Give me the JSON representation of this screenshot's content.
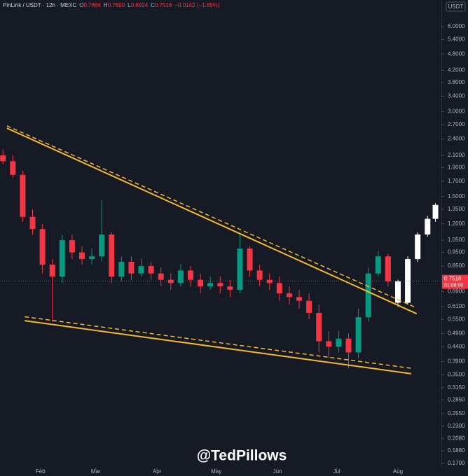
{
  "header": {
    "symbol": "PinLink / USDT · 12h · MEXC",
    "o_label": "O",
    "o": "0.7664",
    "h_label": "H",
    "h": "0.7800",
    "l_label": "L",
    "l": "0.6924",
    "c_label": "C",
    "c": "0.7516",
    "change": "−0.0142 (−1.85%)"
  },
  "currency": "USDT",
  "watermark": "@TedPillows",
  "countdown": "01:08:00",
  "chart_data": {
    "type": "candlestick",
    "log_scale": true,
    "xlim": [
      10.5,
      234
    ],
    "ylim": [
      0.164,
      7.46
    ],
    "xticks": [
      {
        "value": 31,
        "label": "Feb"
      },
      {
        "value": 59,
        "label": "Mar"
      },
      {
        "value": 90,
        "label": "Apr"
      },
      {
        "value": 120,
        "label": "May"
      },
      {
        "value": 151,
        "label": "Jun"
      },
      {
        "value": 181,
        "label": "Jul"
      },
      {
        "value": 212,
        "label": "Aug"
      }
    ],
    "yticks": [
      {
        "value": 6,
        "label": "6.0000"
      },
      {
        "value": 5.4,
        "label": "5.4000"
      },
      {
        "value": 4.8,
        "label": "4.8000"
      },
      {
        "value": 4.2,
        "label": "4.2000"
      },
      {
        "value": 3.8,
        "label": "3.8000"
      },
      {
        "value": 3.4,
        "label": "3.4000"
      },
      {
        "value": 3,
        "label": "3.0000"
      },
      {
        "value": 2.7,
        "label": "2.7000"
      },
      {
        "value": 2.4,
        "label": "2.4000"
      },
      {
        "value": 2.1,
        "label": "2.1000"
      },
      {
        "value": 1.9,
        "label": "1.9000"
      },
      {
        "value": 1.7,
        "label": "1.7000"
      },
      {
        "value": 1.5,
        "label": "1.5000"
      },
      {
        "value": 1.35,
        "label": "1.3500"
      },
      {
        "value": 1.2,
        "label": "1.2000"
      },
      {
        "value": 1.05,
        "label": "1.0500"
      },
      {
        "value": 0.95,
        "label": "0.9500"
      },
      {
        "value": 0.85,
        "label": "0.8500"
      },
      {
        "value": 0.69,
        "label": "0.6900"
      },
      {
        "value": 0.61,
        "label": "0.6100"
      },
      {
        "value": 0.55,
        "label": "0.5500"
      },
      {
        "value": 0.49,
        "label": "0.4900"
      },
      {
        "value": 0.44,
        "label": "0.4400"
      },
      {
        "value": 0.39,
        "label": "0.3900"
      },
      {
        "value": 0.35,
        "label": "0.3500"
      },
      {
        "value": 0.315,
        "label": "0.3150"
      },
      {
        "value": 0.285,
        "label": "0.2850"
      },
      {
        "value": 0.255,
        "label": "0.2550"
      },
      {
        "value": 0.23,
        "label": "0.2300"
      },
      {
        "value": 0.208,
        "label": "0.2080"
      },
      {
        "value": 0.188,
        "label": "0.1880"
      },
      {
        "value": 0.17,
        "label": "0.1700"
      }
    ],
    "up_color": "#089981",
    "down_color": "#f23645",
    "last_price": 0.7516,
    "series": [
      {
        "x": [
          12,
          17,
          22,
          27,
          32,
          37,
          42,
          47,
          52,
          57,
          62,
          67,
          72,
          77,
          82,
          87,
          92,
          97,
          102,
          107,
          112,
          117,
          122,
          127,
          132,
          137,
          142,
          147,
          152,
          157,
          162,
          167,
          172,
          177,
          182,
          187,
          192,
          197,
          202,
          207
        ],
        "open": [
          2.1,
          2.0,
          1.79,
          1.27,
          1.15,
          0.86,
          0.78,
          1.05,
          0.95,
          0.9,
          0.92,
          1.1,
          0.78,
          0.88,
          0.8,
          0.85,
          0.8,
          0.76,
          0.74,
          0.82,
          0.76,
          0.72,
          0.74,
          0.72,
          0.7,
          0.98,
          0.82,
          0.76,
          0.74,
          0.68,
          0.66,
          0.64,
          0.58,
          0.46,
          0.44,
          0.47,
          0.42,
          0.56,
          0.8,
          0.92
        ],
        "high": [
          2.2,
          2.1,
          1.85,
          1.35,
          1.2,
          0.9,
          1.1,
          1.1,
          1.0,
          0.98,
          1.45,
          1.12,
          0.92,
          0.92,
          0.9,
          0.88,
          0.84,
          0.8,
          0.86,
          0.85,
          0.8,
          0.78,
          0.78,
          0.76,
          1.1,
          1.0,
          0.86,
          0.8,
          0.78,
          0.72,
          0.7,
          0.68,
          0.62,
          0.5,
          0.5,
          0.49,
          0.6,
          0.84,
          0.96,
          0.94
        ],
        "low": [
          1.95,
          1.75,
          1.22,
          1.1,
          0.8,
          0.54,
          0.74,
          0.9,
          0.86,
          0.86,
          0.88,
          0.74,
          0.75,
          0.76,
          0.78,
          0.76,
          0.72,
          0.7,
          0.72,
          0.72,
          0.68,
          0.7,
          0.68,
          0.66,
          0.68,
          0.78,
          0.72,
          0.7,
          0.64,
          0.62,
          0.6,
          0.55,
          0.42,
          0.4,
          0.42,
          0.37,
          0.4,
          0.54,
          0.78,
          0.72
        ],
        "close": [
          2.0,
          1.79,
          1.27,
          1.15,
          0.86,
          0.78,
          1.05,
          0.95,
          0.9,
          0.92,
          1.1,
          0.78,
          0.88,
          0.8,
          0.85,
          0.8,
          0.76,
          0.74,
          0.82,
          0.76,
          0.72,
          0.74,
          0.72,
          0.7,
          0.98,
          0.82,
          0.76,
          0.74,
          0.68,
          0.66,
          0.64,
          0.58,
          0.46,
          0.44,
          0.47,
          0.42,
          0.56,
          0.8,
          0.92,
          0.75
        ]
      },
      {
        "color": "#ffffff",
        "x": [
          212,
          217,
          222,
          227,
          231
        ],
        "open": [
          0.75,
          0.63,
          0.9,
          1.1,
          1.25
        ],
        "high": [
          0.76,
          0.92,
          1.12,
          1.28,
          1.42
        ],
        "low": [
          0.61,
          0.62,
          0.88,
          1.08,
          1.22
        ],
        "close": [
          0.63,
          0.9,
          1.1,
          1.25,
          1.4
        ]
      }
    ],
    "trendlines": [
      {
        "color": "#f5b82e",
        "dashed": false,
        "x": [
          14,
          221.5
        ],
        "values": [
          2.62,
          0.576
        ]
      },
      {
        "color": "#f5b82e",
        "dashed": true,
        "x": [
          14,
          221.5
        ],
        "values": [
          2.67,
          0.604
        ]
      },
      {
        "color": "#f5b82e",
        "dashed": false,
        "x": [
          23,
          218.7
        ],
        "values": [
          0.544,
          0.353
        ]
      },
      {
        "color": "#f5b82e",
        "dashed": true,
        "x": [
          23,
          218.7
        ],
        "values": [
          0.562,
          0.369
        ]
      }
    ]
  }
}
